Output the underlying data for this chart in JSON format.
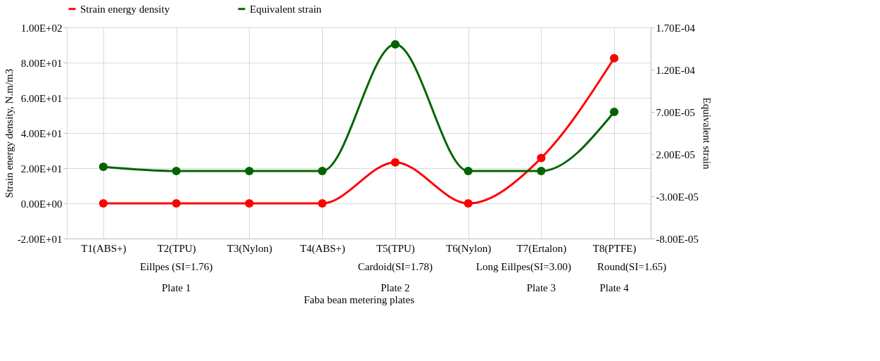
{
  "chart_data": {
    "type": "line",
    "categories": [
      "T1(ABS+)",
      "T2(TPU)",
      "T3(Nylon)",
      "T4(ABS+)",
      "T5(TPU)",
      "T6(Nylon)",
      "T7(Ertalon)",
      "T8(PTFE)"
    ],
    "series": [
      {
        "name": "Strain energy density",
        "color": "#ff0000",
        "values": [
          0,
          0,
          0,
          0,
          23.3,
          0,
          25.8,
          82.5
        ]
      },
      {
        "name": "Equivalent strain",
        "color": "#006400",
        "axis": "y2",
        "values": [
          5e-06,
          0,
          0,
          0,
          0.00015,
          0,
          0,
          7e-05
        ]
      }
    ],
    "xlabel": "Faba bean metering plates",
    "ylabel": "Strain energy density, N.m/m3",
    "y2label": "Equivalent strain",
    "ylim": [
      -20,
      100
    ],
    "yticks": [
      {
        "value": -20,
        "label": "-2.00E+01"
      },
      {
        "value": 0,
        "label": "0.00E+00"
      },
      {
        "value": 20,
        "label": "2.00E+01"
      },
      {
        "value": 40,
        "label": "4.00E+01"
      },
      {
        "value": 60,
        "label": "6.00E+01"
      },
      {
        "value": 80,
        "label": "8.00E+01"
      },
      {
        "value": 100,
        "label": "1.00E+02"
      }
    ],
    "y2lim": [
      -8e-05,
      0.00017
    ],
    "y2ticks": [
      {
        "value": -8e-05,
        "label": "-8.00E-05"
      },
      {
        "value": -3e-05,
        "label": "-3.00E-05"
      },
      {
        "value": 2e-05,
        "label": "2.00E-05"
      },
      {
        "value": 7e-05,
        "label": "7.00E-05"
      },
      {
        "value": 0.00012,
        "label": "1.20E-04"
      },
      {
        "value": 0.00017,
        "label": "1.70E-04"
      }
    ],
    "annotations": [
      "Eillpes (SI=1.76)",
      "Cardoid(SI=1.78)",
      "Long Eillpes(SI=3.00)",
      "Round(SI=1.65)",
      "Plate 1",
      "Plate 2",
      "Plate 3",
      "Plate 4"
    ],
    "grid": true,
    "legend": "top",
    "marker": "circle",
    "line_style": "solid"
  }
}
